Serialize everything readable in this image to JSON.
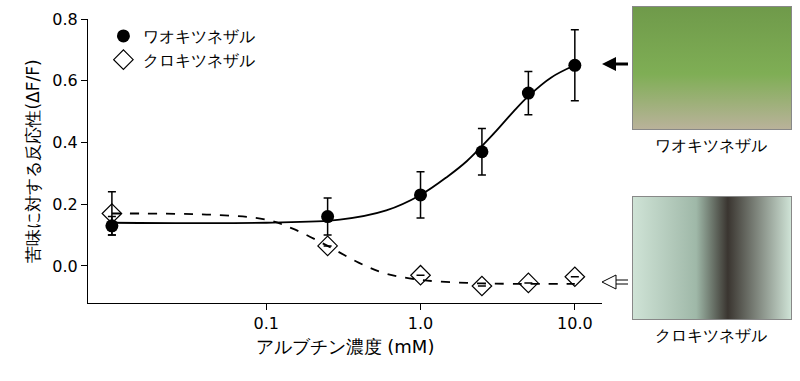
{
  "chart_data": {
    "type": "scatter",
    "x_label": "アルブチン濃度 (mM)",
    "y_label": "苦味に対する反応性(ΔF/F)",
    "log": "x",
    "xlim": [
      0.007,
      15
    ],
    "xticks": [
      0.1,
      {
        "value": 1,
        "label": "1.0"
      },
      {
        "value": 10,
        "label": "10.0"
      }
    ],
    "ylim": [
      -0.12,
      0.8
    ],
    "yticks": [
      {
        "value": 0,
        "label": "0.0"
      },
      0.2,
      0.4,
      0.6,
      0.8
    ],
    "grid": false,
    "legend": "upper left",
    "series": [
      {
        "name": "ワオキツネザル",
        "color": "#000000",
        "marker": "circle",
        "line_style": "solid",
        "x": [
          0.01,
          0.25,
          1,
          2.5,
          5,
          10
        ],
        "values": [
          0.13,
          0.16,
          0.23,
          0.37,
          0.56,
          0.65
        ],
        "errors": [
          0.03,
          0.06,
          0.075,
          0.075,
          0.07,
          0.115
        ],
        "fit_x": [
          0.01,
          0.1,
          0.3,
          0.6,
          1,
          1.5,
          2,
          3,
          4,
          5,
          7,
          10
        ],
        "fit_values": [
          0.14,
          0.14,
          0.15,
          0.18,
          0.23,
          0.29,
          0.34,
          0.43,
          0.5,
          0.55,
          0.61,
          0.65
        ]
      },
      {
        "name": "クロキツネザル",
        "color": "#000000",
        "marker": "diamond-open",
        "line_style": "dashed",
        "x": [
          0.01,
          0.25,
          1,
          2.5,
          5,
          10
        ],
        "values": [
          0.17,
          0.065,
          -0.03,
          -0.065,
          -0.055,
          -0.035
        ],
        "errors": [
          0.07,
          null,
          null,
          null,
          null,
          null
        ],
        "fit_x": [
          0.01,
          0.05,
          0.1,
          0.15,
          0.25,
          0.4,
          0.6,
          1,
          2,
          4,
          10
        ],
        "fit_values": [
          0.17,
          0.165,
          0.15,
          0.12,
          0.065,
          0.01,
          -0.025,
          -0.045,
          -0.055,
          -0.058,
          -0.058
        ]
      }
    ]
  }
}
